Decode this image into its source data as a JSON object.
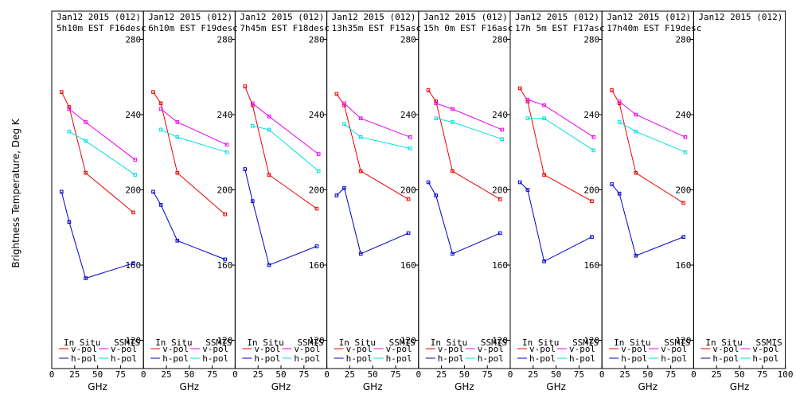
{
  "y_axis_label": "Brightness Temperature, Deg K",
  "legend": {
    "in_situ": "In Situ",
    "ssmis": "SSMIS",
    "vpol": "v-pol",
    "hpol": "h-pol"
  },
  "colors": {
    "insitu_v": "#ee0000",
    "insitu_h": "#0000cc",
    "ssmis_v": "#ee00ee",
    "ssmis_h": "#00e0e0"
  },
  "chart_data": [
    {
      "type": "line",
      "title_line1": "Jan12 2015 (012)",
      "title_line2": "5h10m EST F16desc",
      "xlabel": "GHz",
      "xlim": [
        0,
        100
      ],
      "ylim": [
        105,
        295
      ],
      "xticks": [
        0,
        25,
        50,
        75
      ],
      "yticks": [
        120,
        160,
        200,
        240,
        280
      ],
      "series": [
        {
          "name": "In Situ v-pol",
          "x": [
            10.7,
            19,
            37,
            89
          ],
          "y": [
            252,
            244,
            209,
            188
          ]
        },
        {
          "name": "In Situ h-pol",
          "x": [
            10.7,
            19,
            37,
            89
          ],
          "y": [
            199,
            183,
            153,
            161
          ]
        },
        {
          "name": "SSMIS v-pol",
          "x": [
            19,
            37,
            91
          ],
          "y": [
            243,
            236,
            216
          ]
        },
        {
          "name": "SSMIS h-pol",
          "x": [
            19,
            37,
            91
          ],
          "y": [
            231,
            226,
            208
          ]
        }
      ]
    },
    {
      "type": "line",
      "title_line1": "Jan12 2015 (012)",
      "title_line2": "6h10m EST F19desc",
      "xlabel": "GHz",
      "xlim": [
        0,
        100
      ],
      "ylim": [
        105,
        295
      ],
      "xticks": [
        0,
        25,
        50,
        75
      ],
      "yticks": [
        120,
        160,
        200,
        240,
        280
      ],
      "series": [
        {
          "name": "In Situ v-pol",
          "x": [
            10.7,
            19,
            37,
            89
          ],
          "y": [
            252,
            246,
            209,
            187
          ]
        },
        {
          "name": "In Situ h-pol",
          "x": [
            10.7,
            19,
            37,
            89
          ],
          "y": [
            199,
            192,
            173,
            163
          ]
        },
        {
          "name": "SSMIS v-pol",
          "x": [
            19,
            37,
            91
          ],
          "y": [
            243,
            236,
            224
          ]
        },
        {
          "name": "SSMIS h-pol",
          "x": [
            19,
            37,
            91
          ],
          "y": [
            232,
            228,
            220
          ]
        }
      ]
    },
    {
      "type": "line",
      "title_line1": "Jan12 2015 (012)",
      "title_line2": "7h45m EST F18desc",
      "xlabel": "GHz",
      "xlim": [
        0,
        100
      ],
      "ylim": [
        105,
        295
      ],
      "xticks": [
        0,
        25,
        50,
        75
      ],
      "yticks": [
        120,
        160,
        200,
        240,
        280
      ],
      "series": [
        {
          "name": "In Situ v-pol",
          "x": [
            10.7,
            19,
            37,
            89
          ],
          "y": [
            255,
            245,
            208,
            190
          ]
        },
        {
          "name": "In Situ h-pol",
          "x": [
            10.7,
            19,
            37,
            89
          ],
          "y": [
            211,
            194,
            160,
            170
          ]
        },
        {
          "name": "SSMIS v-pol",
          "x": [
            19,
            37,
            91
          ],
          "y": [
            246,
            239,
            219
          ]
        },
        {
          "name": "SSMIS h-pol",
          "x": [
            19,
            37,
            91
          ],
          "y": [
            234,
            232,
            210
          ]
        }
      ]
    },
    {
      "type": "line",
      "title_line1": "Jan12 2015 (012)",
      "title_line2": "13h35m EST F15asc",
      "xlabel": "GHz",
      "xlim": [
        0,
        100
      ],
      "ylim": [
        105,
        295
      ],
      "xticks": [
        0,
        25,
        50,
        75
      ],
      "yticks": [
        120,
        160,
        200,
        240,
        280
      ],
      "series": [
        {
          "name": "In Situ v-pol",
          "x": [
            10.7,
            19,
            37,
            89
          ],
          "y": [
            251,
            245,
            210,
            195
          ]
        },
        {
          "name": "In Situ h-pol",
          "x": [
            10.7,
            19,
            37,
            89
          ],
          "y": [
            197,
            201,
            166,
            177
          ]
        },
        {
          "name": "SSMIS v-pol",
          "x": [
            19,
            37,
            91
          ],
          "y": [
            246,
            238,
            228
          ]
        },
        {
          "name": "SSMIS h-pol",
          "x": [
            19,
            37,
            91
          ],
          "y": [
            235,
            228,
            222
          ]
        }
      ]
    },
    {
      "type": "line",
      "title_line1": "Jan12 2015 (012)",
      "title_line2": "15h 0m EST F16asc",
      "xlabel": "GHz",
      "xlim": [
        0,
        100
      ],
      "ylim": [
        105,
        295
      ],
      "xticks": [
        0,
        25,
        50,
        75
      ],
      "yticks": [
        120,
        160,
        200,
        240,
        280
      ],
      "series": [
        {
          "name": "In Situ v-pol",
          "x": [
            10.7,
            19,
            37,
            89
          ],
          "y": [
            253,
            247,
            210,
            195
          ]
        },
        {
          "name": "In Situ h-pol",
          "x": [
            10.7,
            19,
            37,
            89
          ],
          "y": [
            204,
            197,
            166,
            177
          ]
        },
        {
          "name": "SSMIS v-pol",
          "x": [
            19,
            37,
            91
          ],
          "y": [
            246,
            243,
            232
          ]
        },
        {
          "name": "SSMIS h-pol",
          "x": [
            19,
            37,
            91
          ],
          "y": [
            238,
            236,
            227
          ]
        }
      ]
    },
    {
      "type": "line",
      "title_line1": "Jan12 2015 (012)",
      "title_line2": "17h 5m EST F17asc",
      "xlabel": "GHz",
      "xlim": [
        0,
        100
      ],
      "ylim": [
        105,
        295
      ],
      "xticks": [
        0,
        25,
        50,
        75
      ],
      "yticks": [
        120,
        160,
        200,
        240,
        280
      ],
      "series": [
        {
          "name": "In Situ v-pol",
          "x": [
            10.7,
            19,
            37,
            89
          ],
          "y": [
            254,
            247,
            208,
            194
          ]
        },
        {
          "name": "In Situ h-pol",
          "x": [
            10.7,
            19,
            37,
            89
          ],
          "y": [
            204,
            200,
            162,
            175
          ]
        },
        {
          "name": "SSMIS v-pol",
          "x": [
            19,
            37,
            91
          ],
          "y": [
            248,
            245,
            228
          ]
        },
        {
          "name": "SSMIS h-pol",
          "x": [
            19,
            37,
            91
          ],
          "y": [
            238,
            238,
            221
          ]
        }
      ]
    },
    {
      "type": "line",
      "title_line1": "Jan12 2015 (012)",
      "title_line2": "17h40m EST F19desc",
      "xlabel": "GHz",
      "xlim": [
        0,
        100
      ],
      "ylim": [
        105,
        295
      ],
      "xticks": [
        0,
        25,
        50,
        75
      ],
      "yticks": [
        120,
        160,
        200,
        240,
        280
      ],
      "series": [
        {
          "name": "In Situ v-pol",
          "x": [
            10.7,
            19,
            37,
            89
          ],
          "y": [
            253,
            246,
            209,
            193
          ]
        },
        {
          "name": "In Situ h-pol",
          "x": [
            10.7,
            19,
            37,
            89
          ],
          "y": [
            203,
            198,
            165,
            175
          ]
        },
        {
          "name": "SSMIS v-pol",
          "x": [
            19,
            37,
            91
          ],
          "y": [
            247,
            240,
            228
          ]
        },
        {
          "name": "SSMIS h-pol",
          "x": [
            19,
            37,
            91
          ],
          "y": [
            236,
            231,
            220
          ]
        }
      ]
    },
    {
      "type": "line",
      "title_line1": "Jan12 2015 (012)",
      "title_line2": "",
      "xlabel": "GHz",
      "xlim": [
        0,
        100
      ],
      "ylim": [
        105,
        295
      ],
      "xticks": [
        0,
        25,
        50,
        75,
        100
      ],
      "yticks": [],
      "series": []
    }
  ]
}
